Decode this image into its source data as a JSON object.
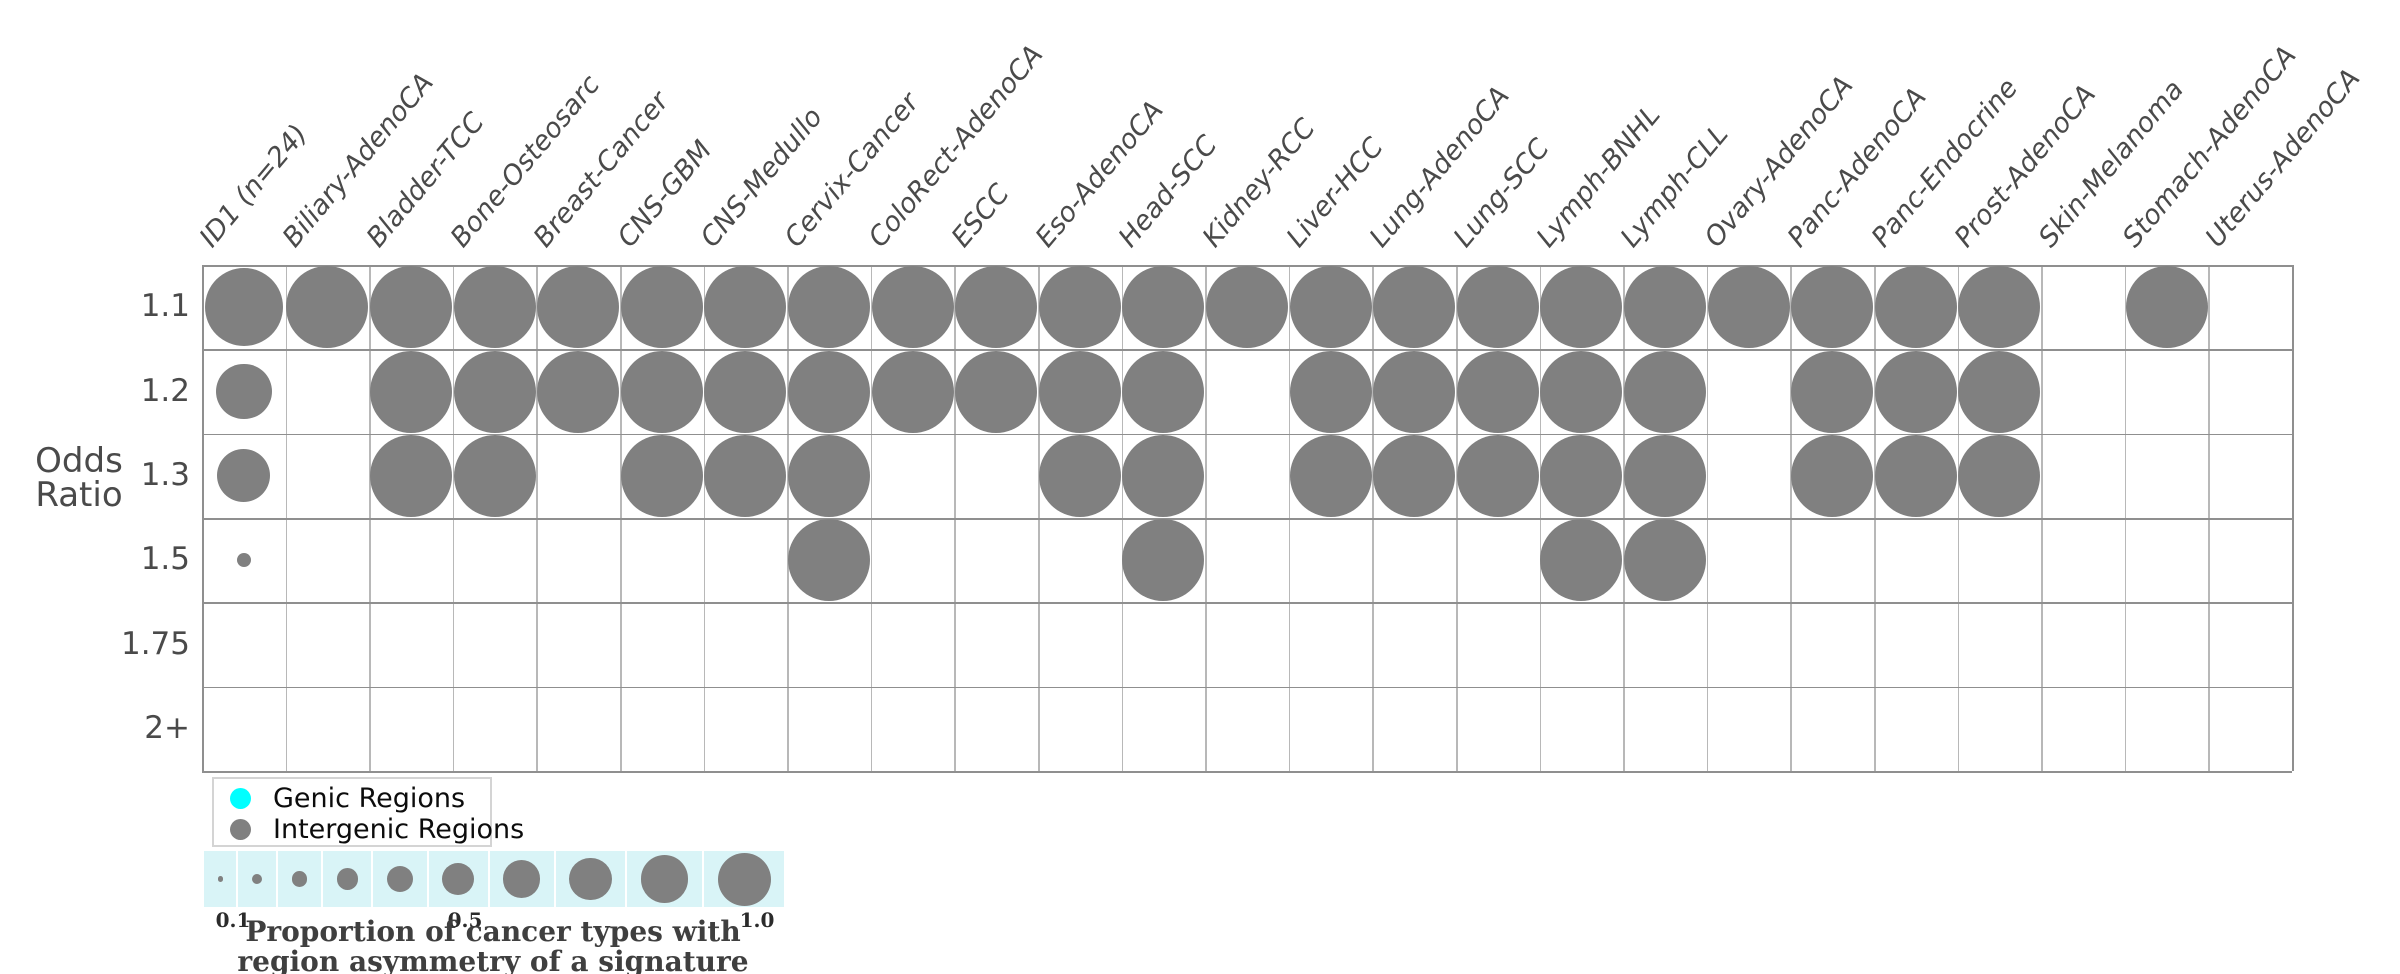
{
  "y_axis": {
    "title_lines": [
      "Odds",
      "Ratio"
    ]
  },
  "chart_data": {
    "type": "bubble",
    "description": "Bubble matrix of odds-ratio bins (rows) vs cancer types (columns); bubble size encodes proportion of cancer types with region asymmetry of a signature; all plotted bubbles belong to the Intergenic Regions series (gray).",
    "x_categories": [
      "ID1 (n=24)",
      "Biliary-AdenoCA",
      "Bladder-TCC",
      "Bone-Osteosarc",
      "Breast-Cancer",
      "CNS-GBM",
      "CNS-Medullo",
      "Cervix-Cancer",
      "ColoRect-AdenoCA",
      "ESCC",
      "Eso-AdenoCA",
      "Head-SCC",
      "Kidney-RCC",
      "Liver-HCC",
      "Lung-AdenoCA",
      "Lung-SCC",
      "Lymph-BNHL",
      "Lymph-CLL",
      "Ovary-AdenoCA",
      "Panc-AdenoCA",
      "Panc-Endocrine",
      "Prost-AdenoCA",
      "Skin-Melanoma",
      "Stomach-AdenoCA",
      "Uterus-AdenoCA"
    ],
    "y_categories": [
      "1.1",
      "1.2",
      "1.3",
      "1.5",
      "1.75",
      "2+"
    ],
    "series_name": "Intergenic Regions",
    "bubble_color": "#808080",
    "proportions": [
      [
        0.95,
        1,
        1,
        1,
        1,
        1,
        1,
        1,
        1,
        1,
        1,
        1,
        1,
        1,
        1,
        1,
        1,
        1,
        1,
        1,
        1,
        1,
        0,
        1,
        0
      ],
      [
        0.68,
        0,
        1,
        1,
        1,
        1,
        1,
        1,
        1,
        1,
        1,
        1,
        0,
        1,
        1,
        1,
        1,
        1,
        0,
        1,
        1,
        1,
        0,
        0,
        0
      ],
      [
        0.65,
        0,
        1,
        1,
        0,
        1,
        1,
        1,
        0,
        0,
        1,
        1,
        0,
        1,
        1,
        1,
        1,
        1,
        0,
        1,
        1,
        1,
        0,
        0,
        0
      ],
      [
        0.17,
        0,
        0,
        0,
        0,
        0,
        0,
        1,
        0,
        0,
        0,
        1,
        0,
        0,
        0,
        0,
        1,
        1,
        0,
        0,
        0,
        0,
        0,
        0,
        0
      ],
      [
        0,
        0,
        0,
        0,
        0,
        0,
        0,
        0,
        0,
        0,
        0,
        0,
        0,
        0,
        0,
        0,
        0,
        0,
        0,
        0,
        0,
        0,
        0,
        0,
        0
      ],
      [
        0,
        0,
        0,
        0,
        0,
        0,
        0,
        0,
        0,
        0,
        0,
        0,
        0,
        0,
        0,
        0,
        0,
        0,
        0,
        0,
        0,
        0,
        0,
        0,
        0
      ]
    ],
    "grid_on": true,
    "legend_position": "bottom-left"
  },
  "legend": {
    "items": [
      {
        "label": "Genic Regions",
        "color": "#00ffff"
      },
      {
        "label": "Intergenic Regions",
        "color": "#808080"
      }
    ]
  },
  "size_legend": {
    "values": [
      0.1,
      0.2,
      0.3,
      0.4,
      0.5,
      0.6,
      0.7,
      0.8,
      0.9,
      1.0
    ],
    "tick_labels": [
      {
        "value": "0.1"
      },
      {
        "value": "0.5"
      },
      {
        "value": "1.0"
      }
    ],
    "caption_lines": [
      "Proportion of cancer types with",
      "region asymmetry of a signature"
    ],
    "strip_color": "#d9f4f7",
    "dot_color": "#808080"
  },
  "colors": {
    "background": "#ffffff",
    "gridline_vertical": "#b8b8b8",
    "gridline_horizontal": "#8f8f8f",
    "text": "#4a4a4a"
  }
}
